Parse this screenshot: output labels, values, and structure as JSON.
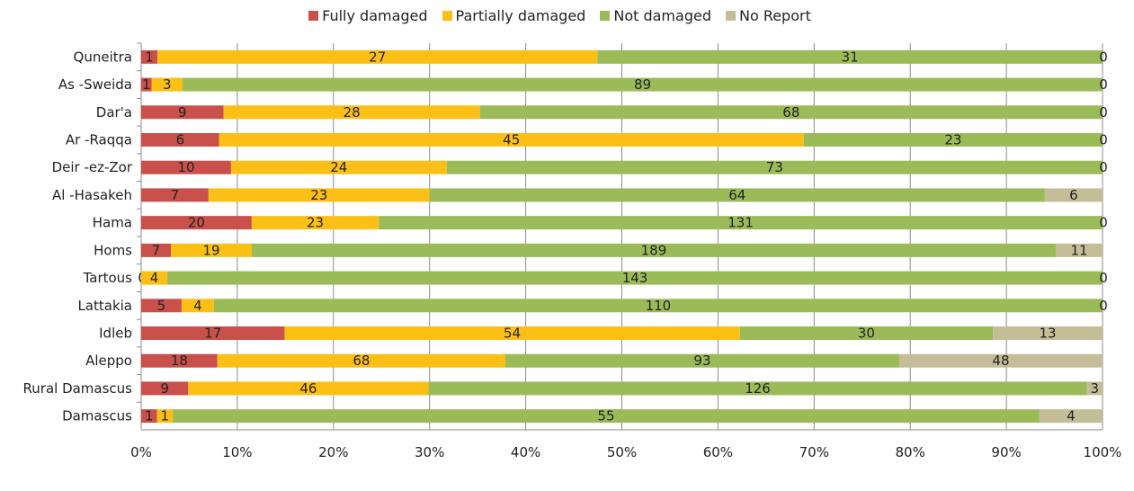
{
  "chart_data": {
    "type": "bar",
    "orientation": "horizontal",
    "stacked": "percent",
    "categories": [
      "Quneitra",
      "As-Sweida",
      "Dar'a",
      "Ar-Raqqa",
      "Deir-ez-Zor",
      "Al-Hasakeh",
      "Hama",
      "Homs",
      "Tartous",
      "Lattakia",
      "Idleb",
      "Aleppo",
      "Rural Damascus",
      "Damascus"
    ],
    "category_labels": [
      "Quneitra",
      "As -Sweida",
      "Dar'a",
      "Ar -Raqqa",
      "Deir -ez-Zor",
      "Al -Hasakeh",
      "Hama",
      "Homs",
      "Tartous",
      "Lattakia",
      "Idleb",
      "Aleppo",
      "Rural Damascus",
      "Damascus"
    ],
    "series": [
      {
        "name": "Fully damaged",
        "color": "#c9504b",
        "values": [
          1,
          1,
          9,
          6,
          10,
          7,
          20,
          7,
          0,
          5,
          17,
          18,
          9,
          1
        ]
      },
      {
        "name": "Partially damaged",
        "color": "#fbbf16",
        "values": [
          27,
          3,
          28,
          45,
          24,
          23,
          23,
          19,
          4,
          4,
          54,
          68,
          46,
          1
        ]
      },
      {
        "name": "Not damaged",
        "color": "#9bbb59",
        "values": [
          31,
          89,
          68,
          23,
          73,
          64,
          131,
          189,
          143,
          110,
          30,
          93,
          126,
          55
        ]
      },
      {
        "name": "No Report",
        "color": "#c4bd97",
        "values": [
          0,
          0,
          0,
          0,
          0,
          6,
          0,
          11,
          0,
          0,
          13,
          48,
          3,
          4
        ]
      }
    ],
    "xaxis": {
      "ticks": [
        "0%",
        "10%",
        "20%",
        "30%",
        "40%",
        "50%",
        "60%",
        "70%",
        "80%",
        "90%",
        "100%"
      ],
      "range": [
        0,
        100
      ]
    },
    "grid": true,
    "legend": "top-center",
    "data_labels": true
  }
}
